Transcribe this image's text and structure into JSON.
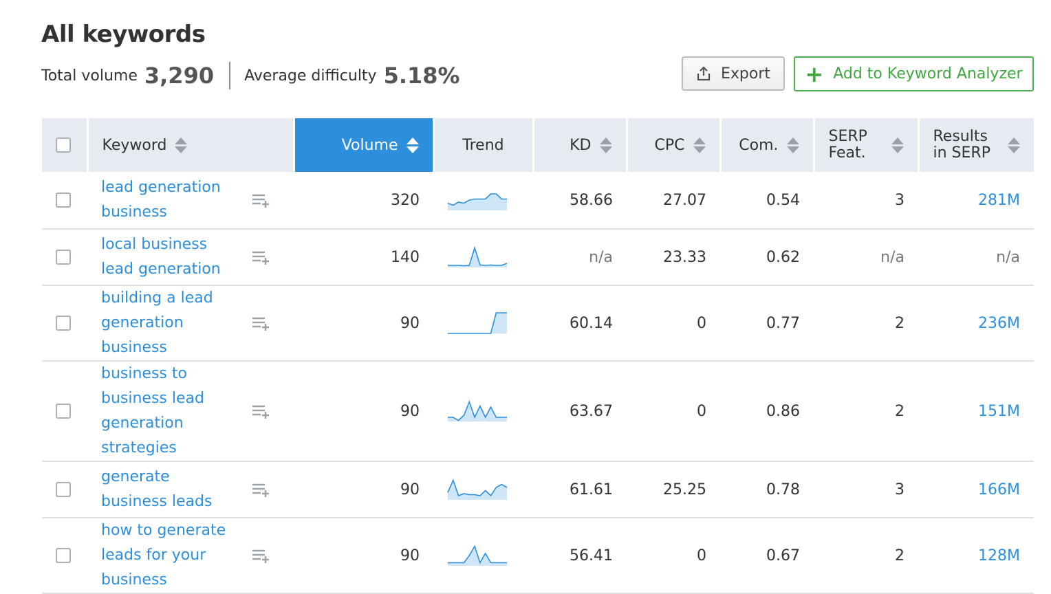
{
  "page": {
    "title": "All keywords",
    "total_volume_label": "Total volume",
    "total_volume_value": "3,290",
    "avg_difficulty_label": "Average difficulty",
    "avg_difficulty_value": "5.18%"
  },
  "toolbar": {
    "export_label": "Export",
    "add_label": "Add to Keyword Analyzer"
  },
  "columns": {
    "keyword": "Keyword",
    "volume": "Volume",
    "trend": "Trend",
    "kd": "KD",
    "cpc": "CPC",
    "com": "Com.",
    "serp_l1": "SERP",
    "serp_l2": "Feat.",
    "results_l1": "Results",
    "results_l2": "in SERP"
  },
  "colors": {
    "accent": "#2d8fdc",
    "add_green": "#4caf50",
    "header_bg": "#e5ebf0"
  },
  "rows": [
    {
      "keyword": "lead generation business",
      "volume": "320",
      "kd": "58.66",
      "cpc": "27.07",
      "com": "0.54",
      "serp": "3",
      "results": "281M",
      "trend": [
        0.35,
        0.25,
        0.4,
        0.35,
        0.5,
        0.55,
        0.55,
        0.55,
        0.8,
        0.8,
        0.55,
        0.55
      ]
    },
    {
      "keyword": "local business lead generation",
      "volume": "140",
      "kd": "n/a",
      "cpc": "23.33",
      "com": "0.62",
      "serp": "n/a",
      "results": "n/a",
      "trend": [
        0.1,
        0.1,
        0.1,
        0.08,
        0.1,
        0.95,
        0.12,
        0.1,
        0.12,
        0.1,
        0.1,
        0.2
      ]
    },
    {
      "keyword": "building a lead generation business",
      "volume": "90",
      "kd": "60.14",
      "cpc": "0",
      "com": "0.77",
      "serp": "2",
      "results": "236M",
      "trend": [
        0,
        0,
        0,
        0,
        0,
        0,
        0,
        0,
        0,
        1,
        1,
        1
      ]
    },
    {
      "keyword": "business to business lead generation strategies",
      "volume": "90",
      "kd": "63.67",
      "cpc": "0",
      "com": "0.86",
      "serp": "2",
      "results": "151M",
      "trend": [
        0.2,
        0.2,
        0.05,
        0.3,
        0.95,
        0.2,
        0.75,
        0.2,
        0.7,
        0.2,
        0.2,
        0.2
      ]
    },
    {
      "keyword": "generate business leads",
      "volume": "90",
      "kd": "61.61",
      "cpc": "25.25",
      "com": "0.78",
      "serp": "3",
      "results": "166M",
      "trend": [
        0.35,
        0.95,
        0.2,
        0.3,
        0.25,
        0.25,
        0.2,
        0.45,
        0.2,
        0.6,
        0.75,
        0.6
      ]
    },
    {
      "keyword": "how to generate leads for your business",
      "volume": "90",
      "kd": "56.41",
      "cpc": "0",
      "com": "0.67",
      "serp": "2",
      "results": "128M",
      "trend": [
        0.15,
        0.15,
        0.15,
        0.15,
        0.5,
        0.95,
        0.15,
        0.6,
        0.15,
        0.15,
        0.15,
        0.15
      ]
    }
  ]
}
